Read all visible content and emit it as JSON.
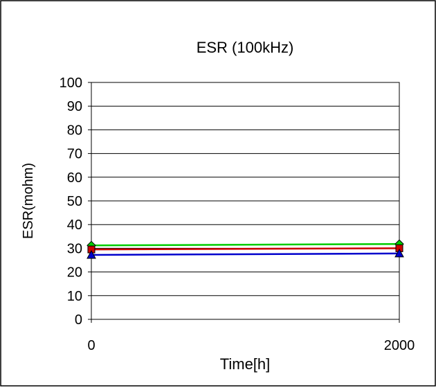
{
  "chart_data": {
    "type": "line",
    "title": "ESR (100kHz)",
    "xlabel": "Time[h]",
    "ylabel": "ESR(mohm)",
    "x": [
      0,
      2000
    ],
    "x_tick_labels": [
      "0",
      "2000"
    ],
    "xlim": [
      0,
      2000
    ],
    "ylim": [
      0,
      100
    ],
    "y_ticks": [
      0,
      10,
      20,
      30,
      40,
      50,
      60,
      70,
      80,
      90,
      100
    ],
    "y_tick_labels": [
      "0",
      "10",
      "20",
      "30",
      "40",
      "50",
      "60",
      "70",
      "80",
      "90",
      "100"
    ],
    "grid": "horizontal",
    "legend": "none",
    "series": [
      {
        "values": [
          31.2,
          31.8
        ],
        "color": "#00cc00",
        "marker": "diamond"
      },
      {
        "values": [
          29.5,
          30.0
        ],
        "color": "#cc0000",
        "marker": "square"
      },
      {
        "values": [
          27.2,
          27.8
        ],
        "color": "#0000cc",
        "marker": "triangle"
      }
    ]
  }
}
